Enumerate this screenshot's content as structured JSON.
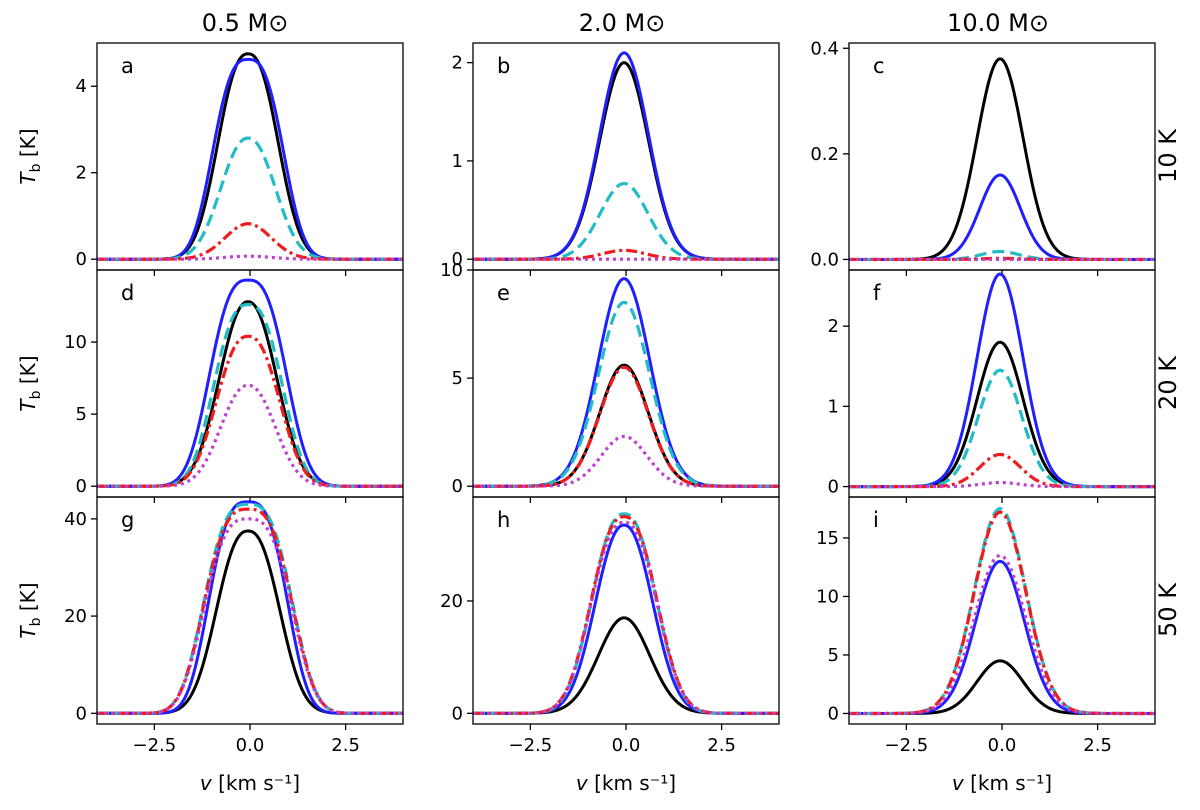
{
  "figure": {
    "column_titles": [
      "0.5 M⊙",
      "2.0 M⊙",
      "10.0 M⊙"
    ],
    "row_titles": [
      "10 K",
      "20 K",
      "50 K"
    ],
    "ylabel_main": "T",
    "ylabel_sub": "b",
    "ylabel_unit": " [K]",
    "xlabel_var": "v",
    "xlabel_unit": " [km s⁻¹]"
  },
  "chart_data": {
    "type": "line",
    "x_range": [
      -4,
      4
    ],
    "x_ticks": [
      -2.5,
      0.0,
      2.5
    ],
    "x_tick_labels": [
      "−2.5",
      "0.0",
      "2.5"
    ],
    "xlabel": "v [km s⁻¹]",
    "ylabel": "T_b [K]",
    "grid": false,
    "legend": "none",
    "series_styles": [
      {
        "color": "#000000",
        "dash": "solid"
      },
      {
        "color": "#1f1fff",
        "dash": "solid"
      },
      {
        "color": "#22bcc4",
        "dash": "dashed"
      },
      {
        "color": "#ee1c1c",
        "dash": "dashdot"
      },
      {
        "color": "#bf3fd0",
        "dash": "dotted"
      }
    ],
    "panels": [
      {
        "letter": "a",
        "ylim": [
          -0.25,
          5.0
        ],
        "yticks": [
          0,
          2,
          4
        ],
        "ytick_labels": [
          "0",
          "2",
          "4"
        ],
        "series": [
          {
            "peak": 4.75,
            "center": -0.05,
            "width": 1.0,
            "power": 2.4
          },
          {
            "peak": 4.62,
            "center": -0.05,
            "width": 1.1,
            "power": 2.8
          },
          {
            "peak": 2.8,
            "center": -0.05,
            "width": 0.95,
            "power": 2.2
          },
          {
            "peak": 0.82,
            "center": -0.05,
            "width": 0.85,
            "power": 2.0
          },
          {
            "peak": 0.07,
            "center": -0.05,
            "width": 0.85,
            "power": 2.0
          }
        ]
      },
      {
        "letter": "b",
        "ylim": [
          -0.11,
          2.2
        ],
        "yticks": [
          0,
          1,
          2
        ],
        "ytick_labels": [
          "0",
          "1",
          "2"
        ],
        "series": [
          {
            "peak": 2.0,
            "center": -0.05,
            "width": 0.9,
            "power": 2.0
          },
          {
            "peak": 2.1,
            "center": -0.05,
            "width": 0.9,
            "power": 2.0
          },
          {
            "peak": 0.77,
            "center": -0.05,
            "width": 0.88,
            "power": 2.0
          },
          {
            "peak": 0.09,
            "center": -0.05,
            "width": 0.8,
            "power": 2.0
          },
          {
            "peak": 0.0,
            "center": -0.05,
            "width": 0.8,
            "power": 2.0
          }
        ]
      },
      {
        "letter": "c",
        "ylim": [
          -0.02,
          0.41
        ],
        "yticks": [
          0.0,
          0.2,
          0.4
        ],
        "ytick_labels": [
          "0.0",
          "0.2",
          "0.4"
        ],
        "series": [
          {
            "peak": 0.38,
            "center": -0.05,
            "width": 0.85,
            "power": 2.0
          },
          {
            "peak": 0.16,
            "center": -0.05,
            "width": 0.75,
            "power": 2.0
          },
          {
            "peak": 0.015,
            "center": -0.05,
            "width": 0.7,
            "power": 2.0
          },
          {
            "peak": 0.002,
            "center": -0.05,
            "width": 0.7,
            "power": 2.0
          },
          {
            "peak": 0.0,
            "center": -0.05,
            "width": 0.7,
            "power": 2.0
          }
        ]
      },
      {
        "letter": "d",
        "ylim": [
          -0.75,
          15.0
        ],
        "yticks": [
          0,
          5,
          10
        ],
        "ytick_labels": [
          "0",
          "5",
          "10"
        ],
        "series": [
          {
            "peak": 12.8,
            "center": -0.05,
            "width": 1.0,
            "power": 2.2
          },
          {
            "peak": 14.3,
            "center": -0.05,
            "width": 1.2,
            "power": 2.8
          },
          {
            "peak": 12.6,
            "center": -0.05,
            "width": 1.1,
            "power": 2.6
          },
          {
            "peak": 10.4,
            "center": -0.05,
            "width": 1.05,
            "power": 2.4
          },
          {
            "peak": 7.0,
            "center": -0.05,
            "width": 0.95,
            "power": 2.2
          }
        ]
      },
      {
        "letter": "e",
        "ylim": [
          -0.5,
          10.0
        ],
        "yticks": [
          0,
          5,
          10
        ],
        "ytick_labels": [
          "0",
          "5",
          "10"
        ],
        "series": [
          {
            "peak": 5.6,
            "center": -0.05,
            "width": 0.9,
            "power": 2.0
          },
          {
            "peak": 9.6,
            "center": -0.05,
            "width": 0.95,
            "power": 2.0
          },
          {
            "peak": 8.5,
            "center": -0.05,
            "width": 0.95,
            "power": 2.0
          },
          {
            "peak": 5.5,
            "center": -0.05,
            "width": 0.9,
            "power": 2.0
          },
          {
            "peak": 2.3,
            "center": -0.05,
            "width": 0.85,
            "power": 2.0
          }
        ]
      },
      {
        "letter": "f",
        "ylim": [
          -0.13,
          2.7
        ],
        "yticks": [
          0,
          1,
          2
        ],
        "ytick_labels": [
          "0",
          "1",
          "2"
        ],
        "series": [
          {
            "peak": 1.8,
            "center": -0.05,
            "width": 0.85,
            "power": 2.0
          },
          {
            "peak": 2.65,
            "center": -0.05,
            "width": 0.85,
            "power": 2.0
          },
          {
            "peak": 1.45,
            "center": -0.05,
            "width": 0.8,
            "power": 2.0
          },
          {
            "peak": 0.4,
            "center": -0.05,
            "width": 0.75,
            "power": 2.0
          },
          {
            "peak": 0.05,
            "center": -0.05,
            "width": 0.7,
            "power": 2.0
          }
        ]
      },
      {
        "letter": "g",
        "ylim": [
          -2.2,
          44.5
        ],
        "yticks": [
          0,
          20,
          40
        ],
        "ytick_labels": [
          "0",
          "20",
          "40"
        ],
        "series": [
          {
            "peak": 37.5,
            "center": -0.05,
            "width": 1.05,
            "power": 2.4
          },
          {
            "peak": 43.5,
            "center": -0.05,
            "width": 1.2,
            "power": 3.0
          },
          {
            "peak": 43.0,
            "center": -0.05,
            "width": 1.35,
            "power": 3.0
          },
          {
            "peak": 42.0,
            "center": -0.05,
            "width": 1.35,
            "power": 3.0
          },
          {
            "peak": 40.0,
            "center": -0.05,
            "width": 1.35,
            "power": 3.0
          }
        ]
      },
      {
        "letter": "h",
        "ylim": [
          -1.9,
          38.5
        ],
        "yticks": [
          0,
          20
        ],
        "ytick_labels": [
          "0",
          "20"
        ],
        "series": [
          {
            "peak": 17.0,
            "center": -0.05,
            "width": 0.95,
            "power": 2.0
          },
          {
            "peak": 33.5,
            "center": -0.05,
            "width": 1.0,
            "power": 2.2
          },
          {
            "peak": 35.5,
            "center": -0.05,
            "width": 1.08,
            "power": 2.4
          },
          {
            "peak": 35.0,
            "center": -0.05,
            "width": 1.1,
            "power": 2.4
          },
          {
            "peak": 34.0,
            "center": -0.05,
            "width": 1.1,
            "power": 2.4
          }
        ]
      },
      {
        "letter": "i",
        "ylim": [
          -0.9,
          18.5
        ],
        "yticks": [
          0,
          5,
          10,
          15
        ],
        "ytick_labels": [
          "0",
          "5",
          "10",
          "15"
        ],
        "series": [
          {
            "peak": 4.5,
            "center": -0.05,
            "width": 0.85,
            "power": 2.0
          },
          {
            "peak": 13.0,
            "center": -0.05,
            "width": 0.9,
            "power": 2.0
          },
          {
            "peak": 17.5,
            "center": -0.05,
            "width": 0.95,
            "power": 2.0
          },
          {
            "peak": 17.2,
            "center": -0.05,
            "width": 0.95,
            "power": 2.0
          },
          {
            "peak": 13.5,
            "center": -0.05,
            "width": 0.95,
            "power": 2.0
          }
        ]
      }
    ]
  }
}
